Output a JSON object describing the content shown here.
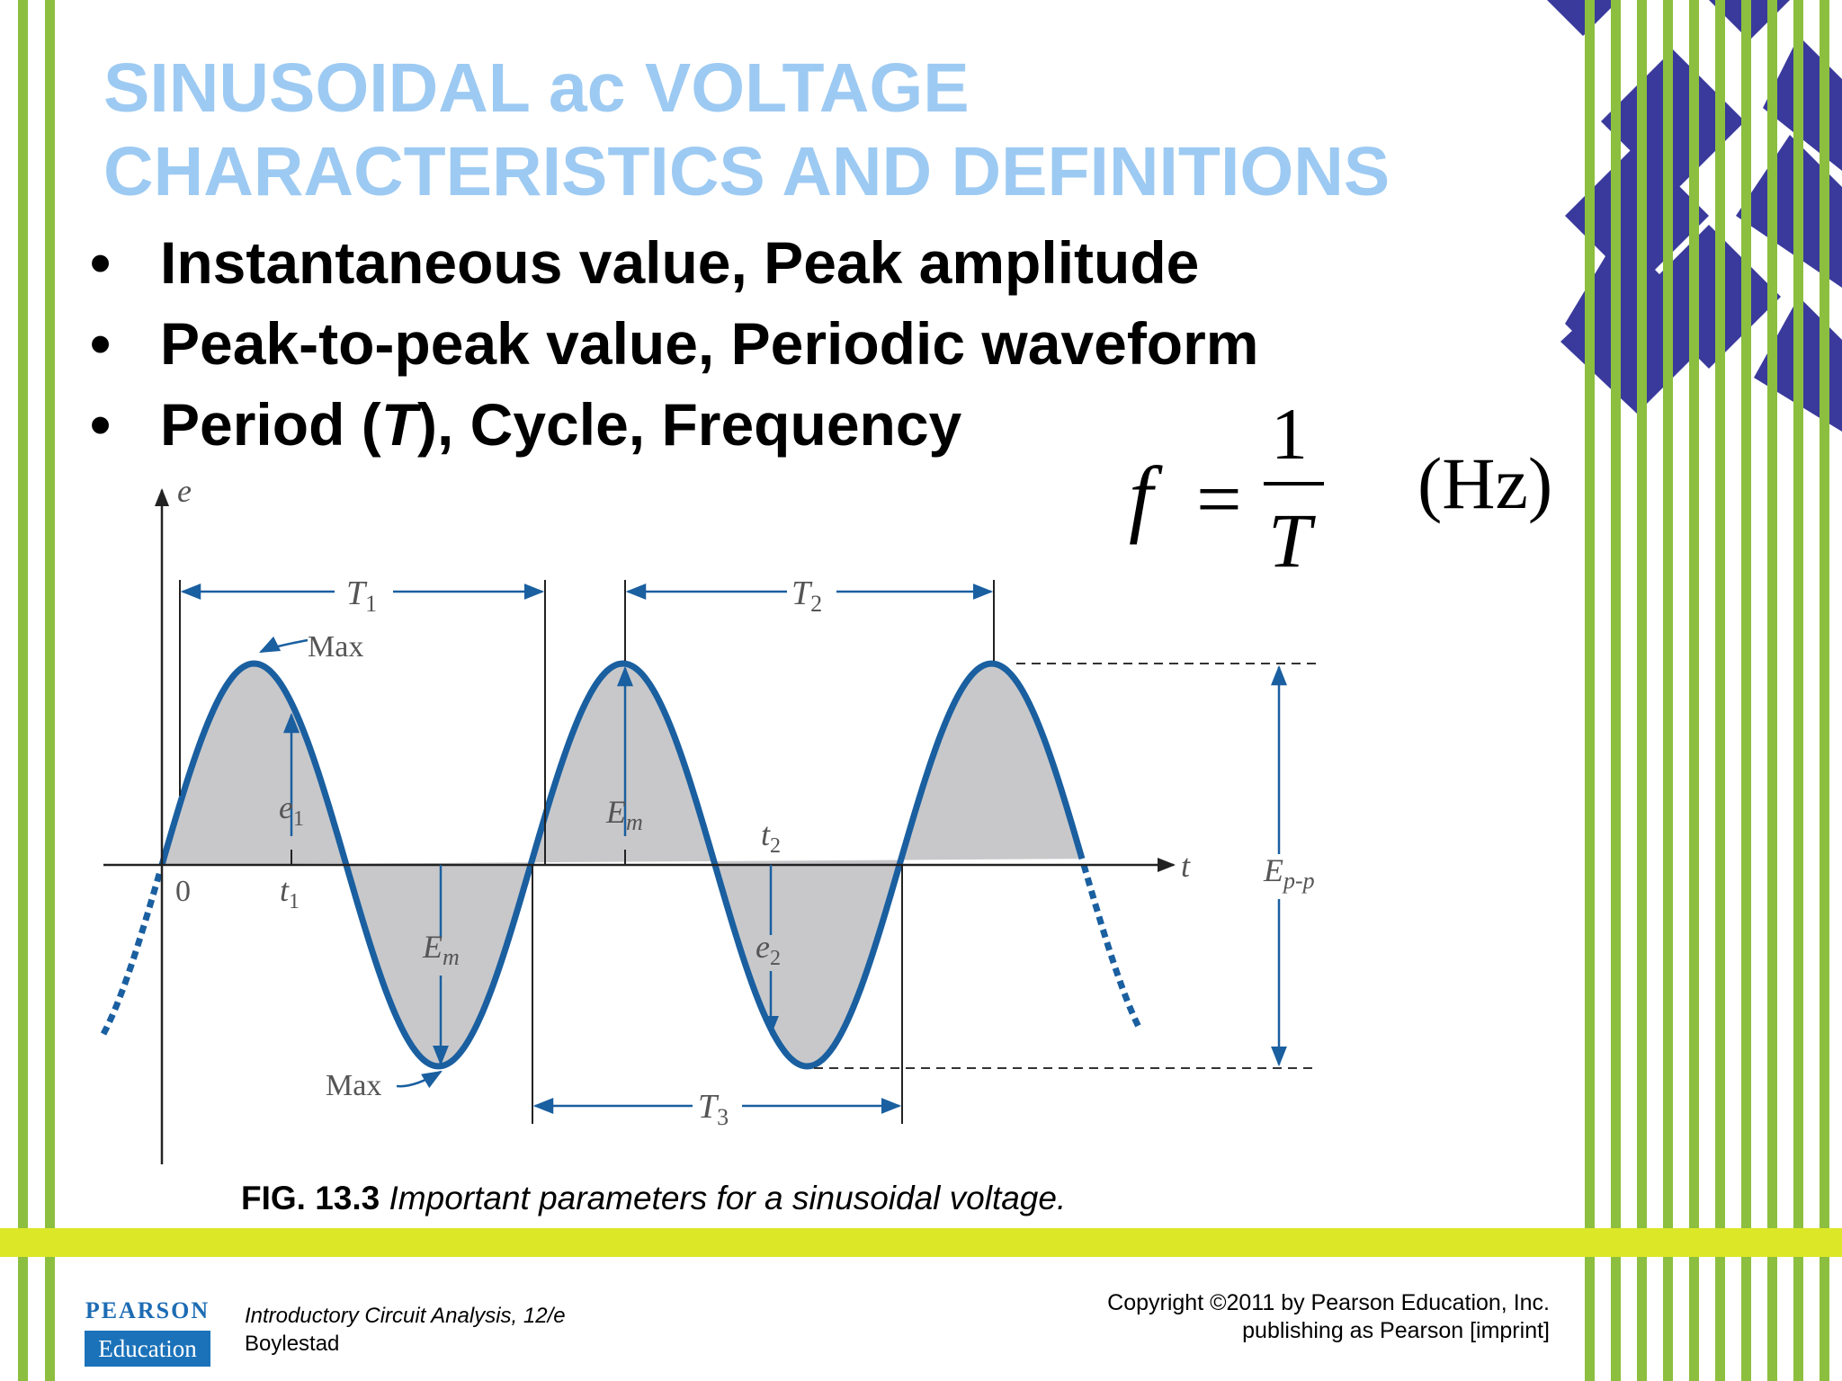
{
  "slide": {
    "title_line1": "SINUSOIDAL ac VOLTAGE",
    "title_line2": "CHARACTERISTICS AND DEFINITIONS",
    "bullets": [
      {
        "text": "Instantaneous value, Peak amplitude"
      },
      {
        "text": "Peak-to-peak value, Periodic waveform"
      },
      {
        "pre": "Period (",
        "italic": "T",
        "post": "), Cycle, Frequency"
      }
    ],
    "bullet_char": "•"
  },
  "formula": {
    "lhs": "f",
    "equals": "=",
    "numerator": "1",
    "denominator": "T",
    "unit": "(Hz)"
  },
  "figure": {
    "axis_y": "e",
    "axis_x": "t",
    "origin": "0",
    "T1": "T",
    "T1_sub": "1",
    "T2": "T",
    "T2_sub": "2",
    "T3": "T",
    "T3_sub": "3",
    "max_top": "Max",
    "max_bottom": "Max",
    "e1": "e",
    "e1_sub": "1",
    "t1": "t",
    "t1_sub": "1",
    "Em": "E",
    "Em_sub": "m",
    "t2": "t",
    "t2_sub": "2",
    "e2": "e",
    "e2_sub": "2",
    "Epp": "E",
    "Epp_sub": "p-p",
    "colors": {
      "wave": "#1a5fa0",
      "fill": "#c8c8ca",
      "dim": "#1a5fa0"
    }
  },
  "caption": {
    "label": "FIG. 13.3",
    "text": "Important parameters for a sinusoidal voltage."
  },
  "footer": {
    "logo_top": "PEARSON",
    "logo_bottom": "Education",
    "book_title": "Introductory Circuit Analysis, 12/e",
    "author": "Boylestad",
    "copyright_line1": "Copyright ©2011 by Pearson Education, Inc.",
    "copyright_line2": "publishing as Pearson [imprint]"
  },
  "colors": {
    "title": "#9dcaf2",
    "green_stripe": "#8cbf3f",
    "diamond": "#3a3a9c",
    "band": "#dce728"
  }
}
